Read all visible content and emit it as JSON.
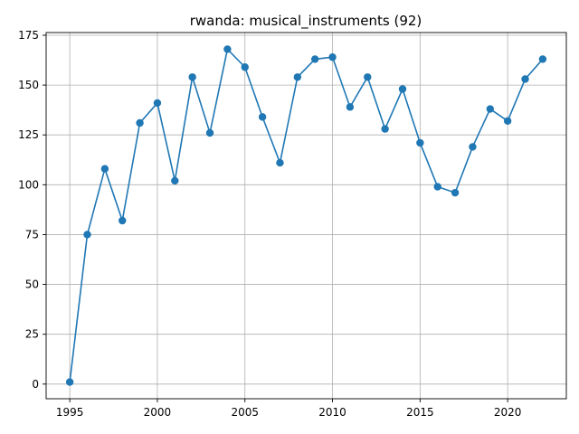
{
  "chart_data": {
    "type": "line",
    "title": "rwanda: musical_instruments (92)",
    "xlabel": "",
    "ylabel": "",
    "x": [
      1995,
      1996,
      1997,
      1998,
      1999,
      2000,
      2001,
      2002,
      2003,
      2004,
      2005,
      2006,
      2007,
      2008,
      2009,
      2010,
      2011,
      2012,
      2013,
      2014,
      2015,
      2016,
      2017,
      2018,
      2019,
      2020,
      2021,
      2022
    ],
    "series": [
      {
        "values": [
          1,
          75,
          108,
          82,
          131,
          141,
          102,
          154,
          126,
          168,
          159,
          134,
          111,
          154,
          163,
          164,
          139,
          154,
          128,
          148,
          121,
          99,
          96,
          119,
          138,
          132,
          153,
          163
        ],
        "color": "#1f77b4",
        "marker": "circle"
      }
    ],
    "xlim": [
      1993.65,
      2023.35
    ],
    "ylim": [
      -7.35,
      176.35
    ],
    "xticks": [
      1995,
      2000,
      2005,
      2010,
      2015,
      2020
    ],
    "yticks": [
      0,
      25,
      50,
      75,
      100,
      125,
      150,
      175
    ],
    "grid": true,
    "legend": "none"
  }
}
